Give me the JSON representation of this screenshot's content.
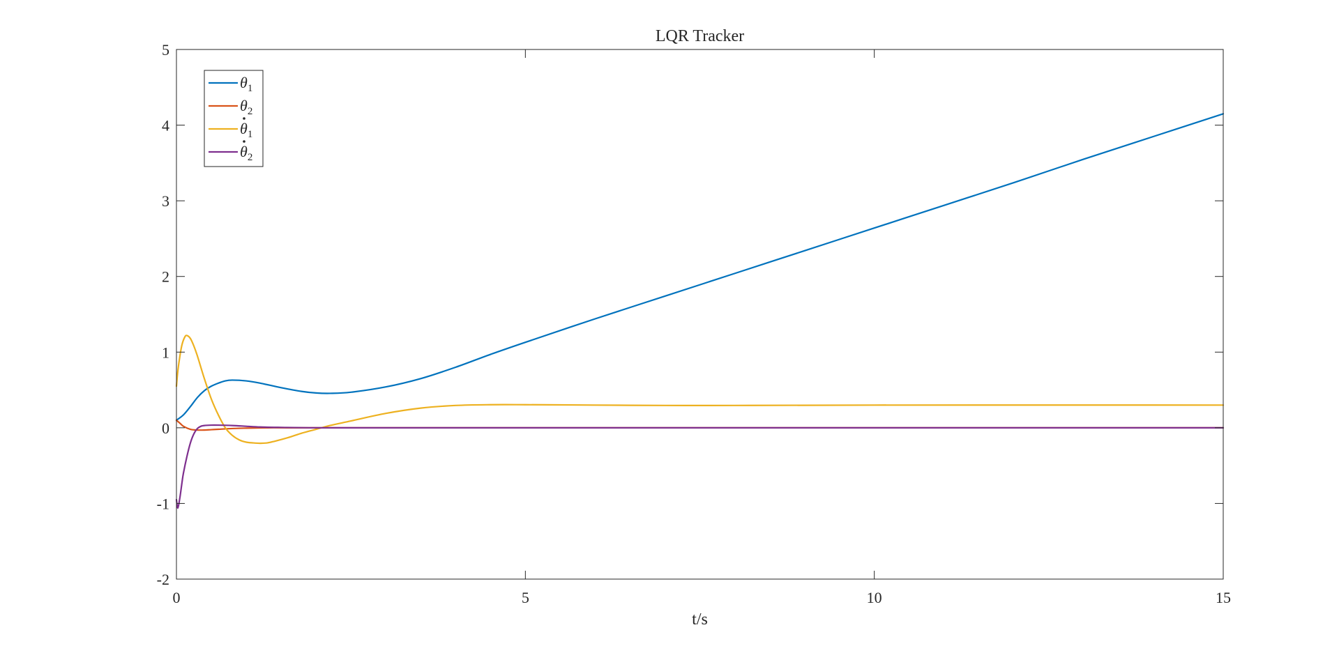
{
  "chart_data": {
    "type": "line",
    "title": "LQR Tracker",
    "xlabel": "t/s",
    "ylabel": "",
    "xlim": [
      0,
      15
    ],
    "ylim": [
      -2,
      5
    ],
    "xticks": [
      0,
      5,
      10,
      15
    ],
    "yticks": [
      -2,
      -1,
      0,
      1,
      2,
      3,
      4,
      5
    ],
    "grid": false,
    "legend_position": "top-left",
    "series": [
      {
        "name": "θ1",
        "legend": {
          "symbol": "θ",
          "sub": "1",
          "dot": false
        },
        "color": "#0072BD",
        "x": [
          0,
          0.1,
          0.2,
          0.3,
          0.4,
          0.5,
          0.6,
          0.7,
          0.8,
          1.0,
          1.2,
          1.5,
          1.8,
          2.0,
          2.2,
          2.5,
          3.0,
          3.5,
          4.0,
          4.5,
          5.0,
          6.0,
          7.0,
          8.0,
          9.0,
          10.0,
          11.0,
          12.0,
          13.0,
          14.0,
          15.0
        ],
        "y": [
          0.1,
          0.17,
          0.28,
          0.4,
          0.49,
          0.55,
          0.59,
          0.62,
          0.63,
          0.62,
          0.59,
          0.53,
          0.48,
          0.46,
          0.455,
          0.47,
          0.54,
          0.65,
          0.8,
          0.97,
          1.13,
          1.44,
          1.74,
          2.04,
          2.34,
          2.64,
          2.94,
          3.24,
          3.55,
          3.85,
          4.15
        ]
      },
      {
        "name": "θ2",
        "legend": {
          "symbol": "θ",
          "sub": "2",
          "dot": false
        },
        "color": "#D95319",
        "x": [
          0,
          0.05,
          0.1,
          0.2,
          0.3,
          0.4,
          0.5,
          0.6,
          0.8,
          1.0,
          1.3,
          1.6,
          2.0,
          3.0,
          5.0,
          10.0,
          15.0
        ],
        "y": [
          0.1,
          0.06,
          0.02,
          -0.02,
          -0.03,
          -0.03,
          -0.025,
          -0.02,
          -0.01,
          -0.005,
          0.0,
          0.0,
          0.0,
          0.0,
          0.0,
          0.0,
          0.0
        ]
      },
      {
        "name": "θ̇1",
        "legend": {
          "symbol": "θ",
          "sub": "1",
          "dot": true
        },
        "color": "#EDB120",
        "x": [
          0,
          0.02,
          0.05,
          0.08,
          0.12,
          0.15,
          0.2,
          0.25,
          0.3,
          0.4,
          0.5,
          0.6,
          0.7,
          0.8,
          0.9,
          1.0,
          1.1,
          1.2,
          1.3,
          1.4,
          1.6,
          1.8,
          2.0,
          2.2,
          2.5,
          3.0,
          3.5,
          4.0,
          4.5,
          5.0,
          6.0,
          7.0,
          8.0,
          10.0,
          15.0
        ],
        "y": [
          0.55,
          0.75,
          0.95,
          1.1,
          1.2,
          1.22,
          1.18,
          1.08,
          0.95,
          0.65,
          0.38,
          0.17,
          0.0,
          -0.1,
          -0.16,
          -0.19,
          -0.2,
          -0.205,
          -0.2,
          -0.18,
          -0.13,
          -0.07,
          -0.02,
          0.03,
          0.09,
          0.19,
          0.26,
          0.295,
          0.305,
          0.305,
          0.3,
          0.295,
          0.295,
          0.3,
          0.3
        ]
      },
      {
        "name": "θ̇2",
        "legend": {
          "symbol": "θ",
          "sub": "2",
          "dot": true
        },
        "color": "#7E2F8E",
        "x": [
          0,
          0.02,
          0.05,
          0.08,
          0.1,
          0.15,
          0.2,
          0.25,
          0.3,
          0.35,
          0.4,
          0.5,
          0.6,
          0.8,
          1.0,
          1.2,
          1.5,
          2.0,
          3.0,
          5.0,
          10.0,
          15.0
        ],
        "y": [
          -0.95,
          -1.06,
          -0.92,
          -0.72,
          -0.6,
          -0.38,
          -0.2,
          -0.08,
          -0.01,
          0.02,
          0.03,
          0.035,
          0.035,
          0.03,
          0.02,
          0.01,
          0.005,
          0.0,
          0.0,
          0.0,
          0.0,
          0.0
        ]
      }
    ]
  }
}
